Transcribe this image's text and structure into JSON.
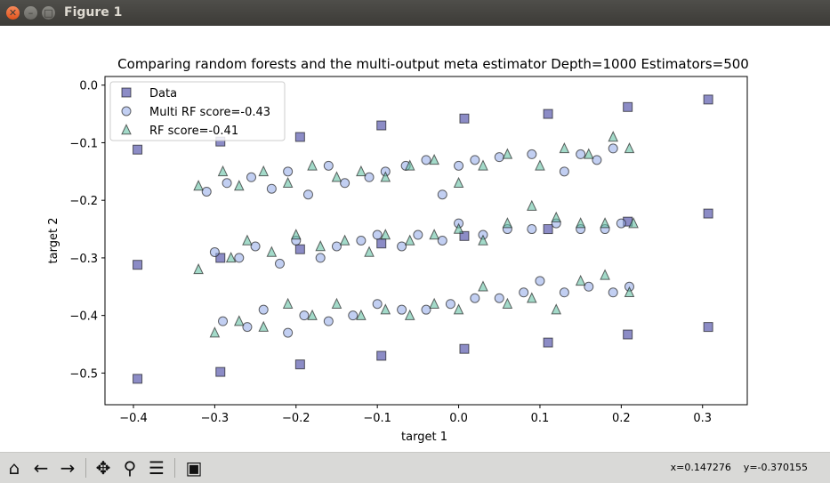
{
  "window": {
    "title": "Figure 1",
    "close_icon": "close-icon",
    "minimize_icon": "minimize-icon",
    "maximize_icon": "maximize-icon"
  },
  "toolbar": {
    "buttons": [
      "home-icon",
      "back-arrow-icon",
      "forward-arrow-icon",
      "pan-icon",
      "zoom-icon",
      "configure-subplots-icon",
      "save-icon"
    ],
    "coords_text": "x=0.147276    y=-0.370155"
  },
  "chart_data": {
    "type": "scatter",
    "title": "Comparing random forests and the multi-output meta estimator Depth=1000 Estimators=500",
    "xlabel": "target 1",
    "ylabel": "target 2",
    "xlim": [
      -0.435,
      0.355
    ],
    "ylim": [
      -0.555,
      0.015
    ],
    "xticks": [
      "−0.4",
      "−0.3",
      "−0.2",
      "−0.1",
      "0.0",
      "0.1",
      "0.2",
      "0.3"
    ],
    "xtick_values": [
      -0.4,
      -0.3,
      -0.2,
      -0.1,
      0.0,
      0.1,
      0.2,
      0.3
    ],
    "yticks": [
      "0.0",
      "−0.1",
      "−0.2",
      "−0.3",
      "−0.4",
      "−0.5"
    ],
    "ytick_values": [
      0.0,
      -0.1,
      -0.2,
      -0.3,
      -0.4,
      -0.5
    ],
    "grid": false,
    "legend_position": "top-left",
    "series": [
      {
        "name": "Data",
        "marker": "square",
        "color": "#000080",
        "points": [
          [
            -0.395,
            -0.112
          ],
          [
            -0.293,
            -0.098
          ],
          [
            -0.195,
            -0.09
          ],
          [
            -0.095,
            -0.07
          ],
          [
            0.007,
            -0.058
          ],
          [
            0.11,
            -0.05
          ],
          [
            0.208,
            -0.038
          ],
          [
            0.307,
            -0.025
          ],
          [
            -0.395,
            -0.312
          ],
          [
            -0.293,
            -0.3
          ],
          [
            -0.195,
            -0.285
          ],
          [
            -0.095,
            -0.275
          ],
          [
            0.007,
            -0.262
          ],
          [
            0.11,
            -0.25
          ],
          [
            0.208,
            -0.237
          ],
          [
            0.307,
            -0.223
          ],
          [
            -0.395,
            -0.51
          ],
          [
            -0.293,
            -0.498
          ],
          [
            -0.195,
            -0.485
          ],
          [
            -0.095,
            -0.47
          ],
          [
            0.007,
            -0.458
          ],
          [
            0.11,
            -0.447
          ],
          [
            0.208,
            -0.433
          ],
          [
            0.307,
            -0.42
          ]
        ]
      },
      {
        "name": "Multi RF score=-0.43",
        "marker": "circle",
        "color": "#8fa8e8",
        "points": [
          [
            -0.31,
            -0.185
          ],
          [
            -0.285,
            -0.17
          ],
          [
            -0.255,
            -0.16
          ],
          [
            -0.23,
            -0.18
          ],
          [
            -0.21,
            -0.15
          ],
          [
            -0.185,
            -0.19
          ],
          [
            -0.16,
            -0.14
          ],
          [
            -0.14,
            -0.17
          ],
          [
            -0.11,
            -0.16
          ],
          [
            -0.09,
            -0.15
          ],
          [
            -0.065,
            -0.14
          ],
          [
            -0.04,
            -0.13
          ],
          [
            -0.02,
            -0.19
          ],
          [
            0.0,
            -0.14
          ],
          [
            0.02,
            -0.13
          ],
          [
            0.05,
            -0.125
          ],
          [
            0.09,
            -0.12
          ],
          [
            0.13,
            -0.15
          ],
          [
            0.15,
            -0.12
          ],
          [
            0.17,
            -0.13
          ],
          [
            0.19,
            -0.11
          ],
          [
            -0.3,
            -0.29
          ],
          [
            -0.27,
            -0.3
          ],
          [
            -0.25,
            -0.28
          ],
          [
            -0.22,
            -0.31
          ],
          [
            -0.2,
            -0.27
          ],
          [
            -0.17,
            -0.3
          ],
          [
            -0.15,
            -0.28
          ],
          [
            -0.12,
            -0.27
          ],
          [
            -0.1,
            -0.26
          ],
          [
            -0.07,
            -0.28
          ],
          [
            -0.05,
            -0.26
          ],
          [
            -0.02,
            -0.27
          ],
          [
            0.0,
            -0.24
          ],
          [
            0.03,
            -0.26
          ],
          [
            0.06,
            -0.25
          ],
          [
            0.09,
            -0.25
          ],
          [
            0.12,
            -0.24
          ],
          [
            0.15,
            -0.25
          ],
          [
            0.18,
            -0.25
          ],
          [
            0.2,
            -0.24
          ],
          [
            -0.29,
            -0.41
          ],
          [
            -0.26,
            -0.42
          ],
          [
            -0.24,
            -0.39
          ],
          [
            -0.21,
            -0.43
          ],
          [
            -0.19,
            -0.4
          ],
          [
            -0.16,
            -0.41
          ],
          [
            -0.13,
            -0.4
          ],
          [
            -0.1,
            -0.38
          ],
          [
            -0.07,
            -0.39
          ],
          [
            -0.04,
            -0.39
          ],
          [
            -0.01,
            -0.38
          ],
          [
            0.02,
            -0.37
          ],
          [
            0.05,
            -0.37
          ],
          [
            0.08,
            -0.36
          ],
          [
            0.1,
            -0.34
          ],
          [
            0.13,
            -0.36
          ],
          [
            0.16,
            -0.35
          ],
          [
            0.19,
            -0.36
          ],
          [
            0.21,
            -0.35
          ]
        ]
      },
      {
        "name": "RF score=-0.41",
        "marker": "triangle",
        "color": "#66c2a5",
        "points": [
          [
            -0.32,
            -0.175
          ],
          [
            -0.29,
            -0.15
          ],
          [
            -0.27,
            -0.175
          ],
          [
            -0.24,
            -0.15
          ],
          [
            -0.21,
            -0.17
          ],
          [
            -0.18,
            -0.14
          ],
          [
            -0.15,
            -0.16
          ],
          [
            -0.12,
            -0.15
          ],
          [
            -0.09,
            -0.16
          ],
          [
            -0.06,
            -0.14
          ],
          [
            -0.03,
            -0.13
          ],
          [
            0.0,
            -0.17
          ],
          [
            0.03,
            -0.14
          ],
          [
            0.06,
            -0.12
          ],
          [
            0.1,
            -0.14
          ],
          [
            0.13,
            -0.11
          ],
          [
            0.16,
            -0.12
          ],
          [
            0.19,
            -0.09
          ],
          [
            0.21,
            -0.11
          ],
          [
            -0.32,
            -0.32
          ],
          [
            -0.28,
            -0.3
          ],
          [
            -0.26,
            -0.27
          ],
          [
            -0.23,
            -0.29
          ],
          [
            -0.2,
            -0.26
          ],
          [
            -0.17,
            -0.28
          ],
          [
            -0.14,
            -0.27
          ],
          [
            -0.11,
            -0.29
          ],
          [
            -0.09,
            -0.26
          ],
          [
            -0.06,
            -0.27
          ],
          [
            -0.03,
            -0.26
          ],
          [
            0.0,
            -0.25
          ],
          [
            0.03,
            -0.27
          ],
          [
            0.06,
            -0.24
          ],
          [
            0.09,
            -0.21
          ],
          [
            0.12,
            -0.23
          ],
          [
            0.15,
            -0.24
          ],
          [
            0.18,
            -0.24
          ],
          [
            0.215,
            -0.24
          ],
          [
            -0.3,
            -0.43
          ],
          [
            -0.27,
            -0.41
          ],
          [
            -0.24,
            -0.42
          ],
          [
            -0.21,
            -0.38
          ],
          [
            -0.18,
            -0.4
          ],
          [
            -0.15,
            -0.38
          ],
          [
            -0.12,
            -0.4
          ],
          [
            -0.09,
            -0.39
          ],
          [
            -0.06,
            -0.4
          ],
          [
            -0.03,
            -0.38
          ],
          [
            0.0,
            -0.39
          ],
          [
            0.03,
            -0.35
          ],
          [
            0.06,
            -0.38
          ],
          [
            0.09,
            -0.37
          ],
          [
            0.12,
            -0.39
          ],
          [
            0.15,
            -0.34
          ],
          [
            0.18,
            -0.33
          ],
          [
            0.21,
            -0.36
          ]
        ]
      }
    ]
  }
}
